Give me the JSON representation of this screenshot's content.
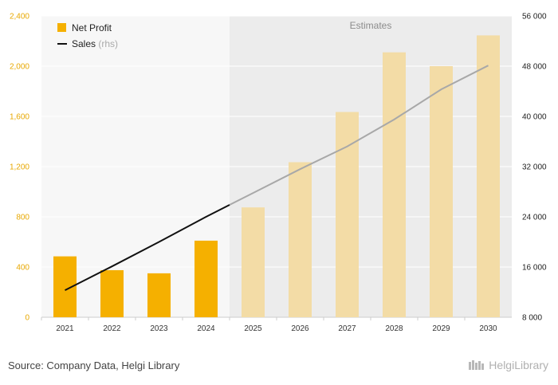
{
  "chart_data": {
    "type": "bar",
    "categories": [
      "2021",
      "2022",
      "2023",
      "2024",
      "2025",
      "2026",
      "2027",
      "2028",
      "2029",
      "2030"
    ],
    "estimates_from": "2025",
    "estimates_label": "Estimates",
    "series": [
      {
        "name": "Net Profit",
        "type": "bar",
        "axis": "left",
        "color": "#f5b000",
        "estimate_color": "#f3dca6",
        "values": [
          485,
          375,
          350,
          610,
          875,
          1235,
          1635,
          2110,
          2000,
          2245
        ]
      },
      {
        "name": "Sales",
        "name_suffix": "(rhs)",
        "type": "line",
        "axis": "right",
        "color": "#111111",
        "estimate_color": "#a8a8a8",
        "values": [
          12300,
          16100,
          20000,
          24000,
          27800,
          31600,
          35200,
          39500,
          44300,
          48100
        ]
      }
    ],
    "y_left": {
      "min": 0,
      "max": 2400,
      "ticks": [
        0,
        400,
        800,
        1200,
        1600,
        2000,
        2400
      ],
      "tick_labels": [
        "0",
        "400",
        "800",
        "1,200",
        "1,600",
        "2,000",
        "2,400"
      ]
    },
    "y_right": {
      "min": 8000,
      "max": 56000,
      "ticks": [
        8000,
        16000,
        24000,
        32000,
        40000,
        48000,
        56000
      ],
      "tick_labels": [
        "8 000",
        "16 000",
        "24 000",
        "32 000",
        "40 000",
        "48 000",
        "56 000"
      ]
    },
    "grid": true,
    "legend": "top-left"
  },
  "source": "Source: Company Data, Helgi Library",
  "brand": "HelgiLibrary"
}
